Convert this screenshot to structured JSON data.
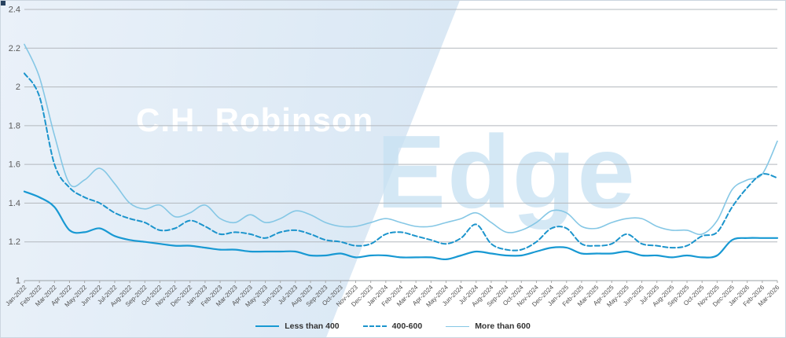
{
  "watermark": {
    "brand": "C.H. Robinson",
    "product": "Edge"
  },
  "chart_data": {
    "type": "line",
    "title": "",
    "xlabel": "",
    "ylabel": "",
    "grid": true,
    "legend_position": "bottom",
    "ylim": [
      1,
      2.4
    ],
    "yticks": [
      1,
      1.2,
      1.4,
      1.6,
      1.8,
      2,
      2.2,
      2.4
    ],
    "ytick_labels": [
      "1",
      "1.2",
      "1.4",
      "1.6",
      "1.8",
      "2",
      "2.2",
      "2.4"
    ],
    "x": [
      "Jan-2022",
      "Feb-2022",
      "Mar-2022",
      "Apr-2022",
      "May-2022",
      "Jun-2022",
      "Jul-2022",
      "Aug-2022",
      "Sep-2022",
      "Oct-2022",
      "Nov-2022",
      "Dec-2022",
      "Jan-2023",
      "Feb-2023",
      "Mar-2023",
      "Apr-2023",
      "May-2023",
      "Jun-2023",
      "Jul-2023",
      "Aug-2023",
      "Sep-2023",
      "Oct-2023",
      "Nov-2023",
      "Dec-2023",
      "Jan-2024",
      "Feb-2024",
      "Mar-2024",
      "Apr-2024",
      "May-2024",
      "Jun-2024",
      "Jul-2024",
      "Aug-2024",
      "Sep-2024",
      "Oct-2024",
      "Nov-2024",
      "Dec-2024",
      "Jan-2025",
      "Feb-2025",
      "Mar-2025",
      "Apr-2025",
      "May-2025",
      "Jun-2025",
      "Jul-2025",
      "Aug-2025",
      "Sep-2025",
      "Oct-2025",
      "Nov-2025",
      "Dec-2025",
      "Jan-2026",
      "Feb-2026",
      "Mar-2026"
    ],
    "series": [
      {
        "name": "Less than 400",
        "style": "solid",
        "color": "#1899d3",
        "width": 2.2,
        "z": 3,
        "values": [
          1.46,
          1.43,
          1.38,
          1.26,
          1.25,
          1.27,
          1.23,
          1.21,
          1.2,
          1.19,
          1.18,
          1.18,
          1.17,
          1.16,
          1.16,
          1.15,
          1.15,
          1.15,
          1.15,
          1.13,
          1.13,
          1.14,
          1.12,
          1.13,
          1.13,
          1.12,
          1.12,
          1.12,
          1.11,
          1.13,
          1.15,
          1.14,
          1.13,
          1.13,
          1.15,
          1.17,
          1.17,
          1.14,
          1.14,
          1.14,
          1.15,
          1.13,
          1.13,
          1.12,
          1.13,
          1.12,
          1.13,
          1.21,
          1.22,
          1.22,
          1.22
        ]
      },
      {
        "name": "400-600",
        "style": "dashed",
        "color": "#1b94cc",
        "width": 2,
        "z": 2,
        "values": [
          2.07,
          1.95,
          1.6,
          1.48,
          1.43,
          1.4,
          1.35,
          1.32,
          1.3,
          1.26,
          1.27,
          1.31,
          1.28,
          1.24,
          1.25,
          1.24,
          1.22,
          1.25,
          1.26,
          1.24,
          1.21,
          1.2,
          1.18,
          1.19,
          1.24,
          1.25,
          1.23,
          1.21,
          1.19,
          1.22,
          1.29,
          1.19,
          1.16,
          1.16,
          1.2,
          1.27,
          1.27,
          1.19,
          1.18,
          1.19,
          1.24,
          1.19,
          1.18,
          1.17,
          1.18,
          1.23,
          1.25,
          1.38,
          1.48,
          1.55,
          1.53
        ]
      },
      {
        "name": "More than 600",
        "style": "solid",
        "color": "#85c7e5",
        "width": 1.6,
        "z": 1,
        "values": [
          2.22,
          2.05,
          1.75,
          1.5,
          1.52,
          1.58,
          1.5,
          1.4,
          1.37,
          1.39,
          1.33,
          1.35,
          1.39,
          1.32,
          1.3,
          1.34,
          1.3,
          1.32,
          1.36,
          1.34,
          1.3,
          1.28,
          1.28,
          1.3,
          1.32,
          1.3,
          1.28,
          1.28,
          1.3,
          1.32,
          1.35,
          1.3,
          1.25,
          1.26,
          1.3,
          1.36,
          1.35,
          1.28,
          1.27,
          1.3,
          1.32,
          1.32,
          1.28,
          1.26,
          1.26,
          1.24,
          1.31,
          1.47,
          1.52,
          1.55,
          1.72
        ]
      }
    ]
  }
}
